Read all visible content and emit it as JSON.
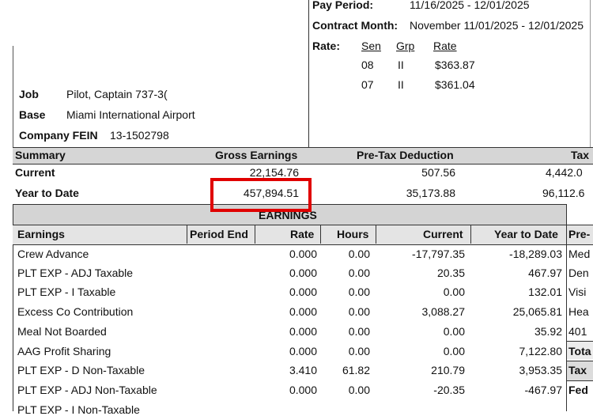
{
  "header": {
    "pay_period_label": "Pay Period:",
    "pay_period_value": "11/16/2025 - 12/01/2025",
    "contract_month_label": "Contract Month:",
    "contract_month_value": "November 11/01/2025 - 12/01/2025",
    "rate_label": "Rate:",
    "rate_columns": [
      "Sen",
      "Grp",
      "Rate"
    ],
    "rate_rows": [
      {
        "sen": "08",
        "grp": "II",
        "rate": "$363.87"
      },
      {
        "sen": "07",
        "grp": "II",
        "rate": "$361.04"
      }
    ]
  },
  "employee": {
    "job_label": "Job",
    "job_value": "Pilot, Captain 737-3(",
    "base_label": "Base",
    "base_value": "Miami International Airport",
    "fein_label": "Company FEIN",
    "fein_value": "13-1502798"
  },
  "summary": {
    "headers": [
      "Summary",
      "Gross Earnings",
      "Pre-Tax Deduction",
      "Tax"
    ],
    "rows": [
      {
        "label": "Current",
        "gross": "22,154.76",
        "pretax": "507.56",
        "tax": "4,442.0"
      },
      {
        "label": "Year to Date",
        "gross": "457,894.51",
        "pretax": "35,173.88",
        "tax": "96,112.6"
      }
    ]
  },
  "earnings": {
    "section_title": "EARNINGS",
    "columns": [
      "Earnings",
      "Period End",
      "Rate",
      "Hours",
      "Current",
      "Year to Date"
    ],
    "rows": [
      {
        "name": "Crew Advance",
        "period_end": "",
        "rate": "0.000",
        "hours": "0.00",
        "current": "-17,797.35",
        "ytd": "-18,289.03"
      },
      {
        "name": "PLT EXP - ADJ Taxable",
        "period_end": "",
        "rate": "0.000",
        "hours": "0.00",
        "current": "20.35",
        "ytd": "467.97"
      },
      {
        "name": "PLT EXP - I Taxable",
        "period_end": "",
        "rate": "0.000",
        "hours": "0.00",
        "current": "0.00",
        "ytd": "132.01"
      },
      {
        "name": "Excess Co Contribution",
        "period_end": "",
        "rate": "0.000",
        "hours": "0.00",
        "current": "3,088.27",
        "ytd": "25,065.81"
      },
      {
        "name": "Meal Not Boarded",
        "period_end": "",
        "rate": "0.000",
        "hours": "0.00",
        "current": "0.00",
        "ytd": "35.92"
      },
      {
        "name": "AAG Profit Sharing",
        "period_end": "",
        "rate": "0.000",
        "hours": "0.00",
        "current": "0.00",
        "ytd": "7,122.80"
      },
      {
        "name": "PLT EXP - D  Non-Taxable",
        "period_end": "",
        "rate": "3.410",
        "hours": "61.82",
        "current": "210.79",
        "ytd": "3,953.35"
      },
      {
        "name": "PLT EXP - ADJ Non-Taxable",
        "period_end": "",
        "rate": "0.000",
        "hours": "0.00",
        "current": "-20.35",
        "ytd": "-467.97"
      },
      {
        "name": "PLT EXP - I  Non-Taxable",
        "period_end": "",
        "rate": "",
        "hours": "",
        "current": "",
        "ytd": ""
      }
    ]
  },
  "side_panel": {
    "header": "Pre-",
    "items": [
      "Med",
      "Den",
      "Visi",
      "Hea",
      "401",
      "Tota",
      "Tax",
      "Fed"
    ]
  },
  "highlight_color": "#e00000"
}
